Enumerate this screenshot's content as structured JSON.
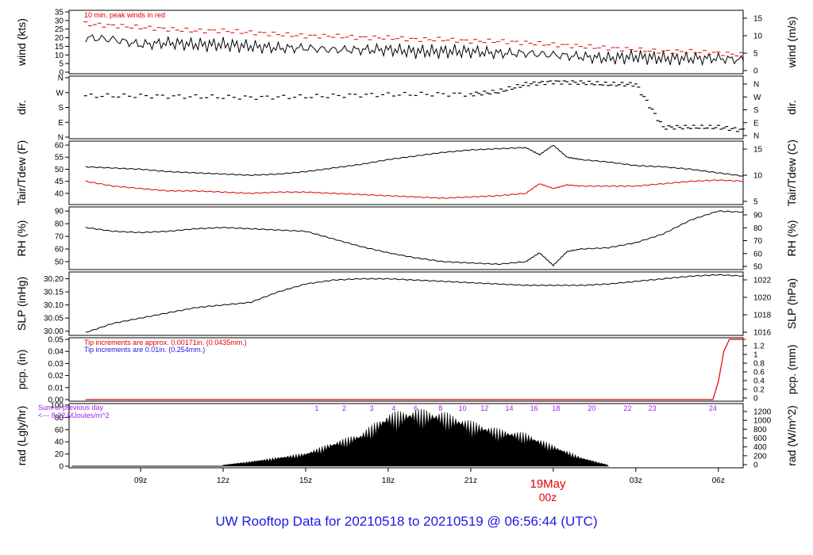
{
  "title": "UW Rooftop Data for 20210518  to  20210519 @ 06:56:44  (UTC)",
  "colors": {
    "text": "#000000",
    "red": "#e00000",
    "blue": "#1a1ae6",
    "purple": "#a020f0",
    "title": "#1a1ae6"
  },
  "time_axis": {
    "ticks": [
      "09z",
      "12z",
      "15z",
      "18z",
      "21z",
      "03z",
      "06z"
    ],
    "date_label": "19May",
    "date_sub": "00z"
  },
  "chart_data": [
    {
      "type": "line",
      "name": "wind",
      "ylabel_left": "wind (kts)",
      "ylabel_right": "wind (m/s)",
      "left_ticks": [
        "0",
        "5",
        "10",
        "15",
        "20",
        "25",
        "30",
        "35"
      ],
      "ylim": [
        0,
        35
      ],
      "right_ticks": [
        "0",
        "5",
        "10",
        "15"
      ],
      "annotation": "10 min. peak winds in red",
      "x": [
        7,
        8,
        9,
        10,
        11,
        12,
        13,
        14,
        15,
        16,
        17,
        18,
        19,
        20,
        21,
        22,
        23,
        24,
        25,
        26,
        27,
        28,
        29,
        30,
        31
      ],
      "series": [
        {
          "values": [
            20,
            19,
            16,
            17,
            16,
            16,
            15,
            14,
            14,
            13,
            13,
            13,
            12,
            12,
            12,
            11,
            11,
            10,
            9,
            8,
            9,
            8,
            8,
            8,
            7
          ]
        },
        {
          "values": [
            28,
            27,
            26,
            25,
            24,
            24,
            23,
            22,
            21,
            21,
            20,
            20,
            19,
            19,
            18,
            18,
            17,
            16,
            15,
            14,
            13,
            12,
            12,
            11,
            10
          ]
        }
      ]
    },
    {
      "type": "scatter",
      "name": "dir",
      "ylabel_left": "dir.",
      "ylabel_right": "dir.",
      "left_ticks": [
        "N",
        "E",
        "S",
        "W",
        "N"
      ],
      "right_ticks": [
        "N",
        "E",
        "S",
        "W",
        "N"
      ],
      "x": [
        7,
        9,
        11,
        13,
        15,
        17,
        19,
        21,
        22,
        23,
        24,
        25,
        26,
        27,
        28,
        29,
        30,
        31
      ],
      "series": [
        {
          "values": [
            250,
            250,
            245,
            240,
            245,
            255,
            260,
            260,
            275,
            320,
            335,
            330,
            320,
            320,
            60,
            60,
            60,
            40
          ]
        }
      ]
    },
    {
      "type": "line",
      "name": "temp",
      "ylabel_left": "Tair/Tdew (F)",
      "ylabel_right": "Tair/Tdew (C)",
      "left_ticks": [
        "40",
        "45",
        "50",
        "55",
        "60"
      ],
      "ylim": [
        36,
        61
      ],
      "right_ticks": [
        "5",
        "10",
        "15"
      ],
      "x": [
        7,
        8,
        9,
        10,
        11,
        12,
        13,
        14,
        15,
        16,
        17,
        18,
        19,
        20,
        21,
        22,
        23,
        23.5,
        24,
        24.5,
        25,
        26,
        27,
        28,
        29,
        30,
        31
      ],
      "series": [
        {
          "name": "Tair",
          "values": [
            51,
            50.5,
            50,
            49,
            48.5,
            48,
            47.5,
            48,
            49,
            50.5,
            52,
            54,
            55.5,
            57,
            58,
            58.5,
            59,
            56,
            60,
            55,
            54,
            53,
            51.5,
            51,
            50,
            48.5,
            47
          ]
        },
        {
          "name": "Tdew",
          "values": [
            45,
            43,
            42,
            41,
            41,
            40.5,
            40,
            40.5,
            40.5,
            40,
            39.5,
            39,
            38.5,
            38,
            38.5,
            39,
            40,
            44,
            42,
            43.5,
            43,
            43,
            43,
            44,
            45,
            45.5,
            45
          ]
        }
      ]
    },
    {
      "type": "line",
      "name": "rh",
      "ylabel_left": "RH (%)",
      "ylabel_right": "RH (%)",
      "left_ticks": [
        "50",
        "60",
        "70",
        "80",
        "90"
      ],
      "ylim": [
        45,
        92
      ],
      "right_ticks": [
        "50",
        "60",
        "70",
        "80",
        "90"
      ],
      "x": [
        7,
        8,
        9,
        10,
        11,
        12,
        13,
        14,
        15,
        16,
        17,
        18,
        19,
        20,
        21,
        22,
        23,
        23.5,
        24,
        24.5,
        25,
        26,
        27,
        28,
        29,
        30,
        31
      ],
      "series": [
        {
          "values": [
            77,
            74,
            73,
            74,
            76,
            77,
            76,
            75,
            74,
            68,
            62,
            57,
            53,
            50,
            49,
            48,
            50,
            57,
            47,
            58,
            60,
            61,
            65,
            72,
            83,
            90,
            89
          ]
        }
      ]
    },
    {
      "type": "line",
      "name": "slp",
      "ylabel_left": "SLP (inHg)",
      "ylabel_right": "SLP (hPa)",
      "left_ticks": [
        "30.00",
        "30.05",
        "30.10",
        "30.15",
        "30.20"
      ],
      "ylim": [
        29.99,
        30.22
      ],
      "right_ticks": [
        "1016",
        "1018",
        "1020",
        "1022"
      ],
      "x": [
        7,
        8,
        9,
        10,
        11,
        12,
        13,
        14,
        15,
        16,
        17,
        18,
        19,
        20,
        21,
        22,
        23,
        24,
        25,
        26,
        27,
        28,
        29,
        30,
        31
      ],
      "series": [
        {
          "values": [
            29.995,
            30.03,
            30.05,
            30.07,
            30.09,
            30.1,
            30.11,
            30.15,
            30.18,
            30.195,
            30.2,
            30.2,
            30.195,
            30.19,
            30.185,
            30.18,
            30.175,
            30.175,
            30.175,
            30.18,
            30.19,
            30.2,
            30.21,
            30.215,
            30.21
          ]
        }
      ]
    },
    {
      "type": "line",
      "name": "pcp",
      "ylabel_left": "pcp. (in)",
      "ylabel_right": "pcp. (mm)",
      "left_ticks": [
        "0.00",
        "0.01",
        "0.02",
        "0.03",
        "0.04",
        "0.05"
      ],
      "ylim": [
        0,
        0.05
      ],
      "right_ticks": [
        "0",
        "0.2",
        "0.4",
        "0.6",
        "0.8",
        "1",
        "1.2"
      ],
      "notes": [
        {
          "text": "Tip increments are approx. 0.00171in. (0.0435mm.)",
          "color": "#e00000"
        },
        {
          "text": "Tip increments are 0.01in. (0.254mm.)",
          "color": "#1a1ae6"
        }
      ],
      "x": [
        7,
        29.8,
        30.0,
        30.2,
        30.4,
        31
      ],
      "series": [
        {
          "values": [
            0,
            0,
            0.015,
            0.04,
            0.05,
            0.05
          ]
        }
      ]
    },
    {
      "type": "area",
      "name": "rad",
      "ylabel_left": "rad (Lgly/hr)",
      "ylabel_right": "rad (W/m^2)",
      "left_ticks": [
        "0",
        "20",
        "40",
        "60",
        "80",
        "100"
      ],
      "ylim": [
        0,
        100
      ],
      "right_ticks": [
        "0",
        "200",
        "400",
        "600",
        "800",
        "1000",
        "1200"
      ],
      "notes": [
        "Sum of previous day",
        "<--- 8.22 MJoules/m^2"
      ],
      "hour_marks": [
        "1",
        "2",
        "3",
        "4",
        "6",
        "8",
        "10",
        "12",
        "14",
        "16",
        "18",
        "20",
        "22",
        "23",
        "24"
      ],
      "x": [
        12,
        13,
        14,
        15,
        16,
        17,
        18,
        19,
        20,
        21,
        22,
        23,
        24,
        25,
        26
      ],
      "series": [
        {
          "values": [
            2,
            8,
            15,
            22,
            40,
            55,
            88,
            95,
            90,
            75,
            62,
            55,
            35,
            15,
            2
          ]
        }
      ]
    }
  ]
}
